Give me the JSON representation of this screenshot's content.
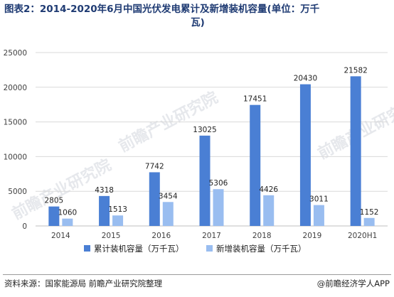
{
  "title_line1": "图表2：2014-2020年6月中国光伏发电累计及新增装机容量(单位：万千",
  "title_line2": "瓦)",
  "footer": {
    "source": "资料来源：国家能源局 前瞻产业研究院整理",
    "brand": "@前瞻经济学人APP"
  },
  "watermark": "前瞻产业研究院",
  "colors": {
    "cumulative": "#4a7fd4",
    "new": "#99bdf0",
    "grid": "#d9d9d9",
    "axis_text": "#404040"
  },
  "chart_data": {
    "type": "bar",
    "categories": [
      "2014",
      "2015",
      "2016",
      "2017",
      "2018",
      "2019",
      "2020H1"
    ],
    "series": [
      {
        "name": "累计装机容量（万千瓦）",
        "values": [
          2805,
          4318,
          7742,
          13025,
          17451,
          20430,
          21582
        ]
      },
      {
        "name": "新增装机容量（万千瓦）",
        "values": [
          1060,
          1513,
          3454,
          5306,
          4426,
          3011,
          1152
        ]
      }
    ],
    "yticks": [
      0,
      5000,
      10000,
      15000,
      20000,
      25000
    ],
    "ylim": [
      0,
      25000
    ],
    "grid": true,
    "legend": "bottom"
  }
}
